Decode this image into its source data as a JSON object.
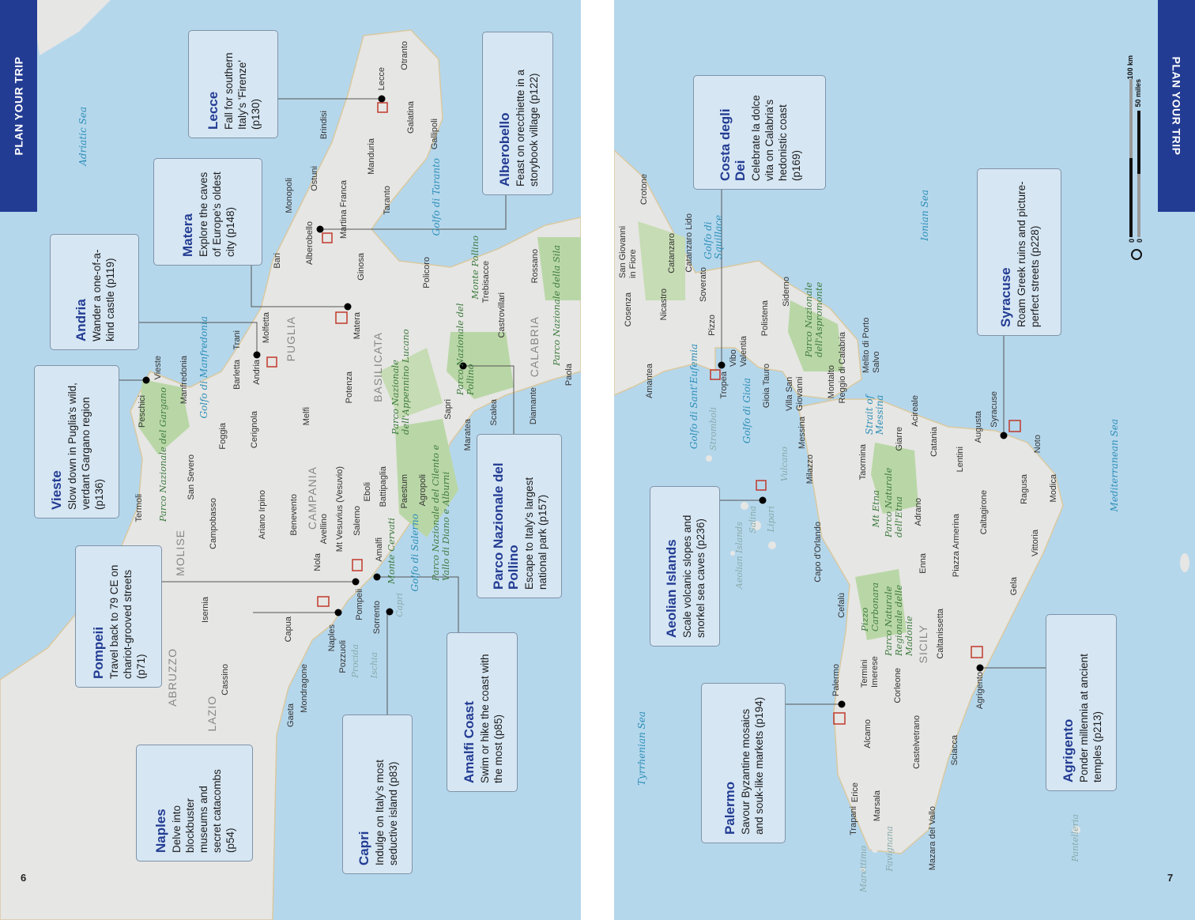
{
  "header": {
    "section_tab": "PLAN YOUR TRIP"
  },
  "pages": {
    "left_number": "6",
    "right_number": "7"
  },
  "scale_bar": {
    "km_label": "100 km",
    "miles_label": "50 miles",
    "zero": "0",
    "north_icon": "north-compass-icon"
  },
  "colors": {
    "sea": "#b5d7ec",
    "land": "#e6e6e4",
    "park": "#b9d7a6",
    "accent": "#233c93",
    "callout_bg": "#d6e6f3",
    "marker": "#c0392b"
  },
  "callouts": [
    {
      "title": "Lecce",
      "text": "Fall for southern Italy's 'Firenze' (p130)"
    },
    {
      "title": "Alberobello",
      "text": "Feast on orecchiette in a storybook village (p122)"
    },
    {
      "title": "Matera",
      "text": "Explore the caves of Europe's oldest city (p148)"
    },
    {
      "title": "Andria",
      "text": "Wander a one-of-a-kind castle (p119)"
    },
    {
      "title": "Vieste",
      "text": "Slow down in Puglia's wild, verdant Gargano region (p136)"
    },
    {
      "title": "Pompeii",
      "text": "Travel back to 79 CE on chariot-grooved streets (p71)"
    },
    {
      "title": "Naples",
      "text": "Delve into blockbuster museums and secret catacombs (p54)"
    },
    {
      "title": "Capri",
      "text": "Indulge on Italy's most seductive island (p83)"
    },
    {
      "title": "Amalfi Coast",
      "text": "Swim or hike the coast with the most (p85)"
    },
    {
      "title": "Parco Nazionale del Pollino",
      "text": "Escape to Italy's largest national park (p157)"
    },
    {
      "title": "Costa degli Dei",
      "text": "Celebrate la dolce vita on Calabria's hedonistic coast (p169)"
    },
    {
      "title": "Syracuse",
      "text": "Roam Greek ruins and picture-perfect streets (p228)"
    },
    {
      "title": "Aeolian Islands",
      "text": "Scale volcanic slopes and snorkel sea caves (p236)"
    },
    {
      "title": "Palermo",
      "text": "Savour Byzantine mosaics and souk-like markets (p194)"
    },
    {
      "title": "Agrigento",
      "text": "Ponder millennia at ancient temples (p213)"
    }
  ],
  "places": [
    "Otranto",
    "Lecce",
    "Galatina",
    "Gallipoli",
    "Brindisi",
    "Manduria",
    "Ostuni",
    "Monopoli",
    "Martina Franca",
    "Taranto",
    "Alberobello",
    "Bari",
    "Ginosa",
    "Policoro",
    "Molfetta",
    "Trani",
    "Matera",
    "Barletta",
    "Andria",
    "PUGLIA",
    "Rossano",
    "Trebisacce",
    "Castrovillari",
    "CALABRIA",
    "Paola",
    "Diamante",
    "Scalea",
    "Sapri",
    "Maratea",
    "Potenza",
    "BASILICATA",
    "Melfi",
    "Cerignola",
    "Foggia",
    "Manfredonia",
    "Vieste",
    "Peschici",
    "San Severo",
    "Termoli",
    "Campobasso",
    "Benevento",
    "Ariano Irpino",
    "CAMPANIA",
    "MOLISE",
    "Eboli",
    "Battipaglia",
    "Paestum",
    "Agropoli",
    "Avellino",
    "Salerno",
    "Nola",
    "Amalfi",
    "Pompeii",
    "Sorrento",
    "Capri",
    "Naples",
    "Pozzuoli",
    "Procida",
    "Ischia",
    "Capua",
    "Isernia",
    "ABRUZZO",
    "Cassino",
    "LAZIO",
    "Mondragone",
    "Gaeta",
    "Mt Vesuvius (Vesuvio)",
    "Adriatic Sea",
    "Golfo di Manfredonia",
    "Golfo di Taranto",
    "Golfo di Salerno",
    "Parco Nazionale del Gargano",
    "Parco Nazionale dell'Appennino Lucano",
    "Parco Nazionale del Pollino",
    "Parco Nazionale del Cilento e Vallo di Diano e Alburni",
    "Monte Cervati",
    "Monte Pollino",
    "Parco Nazionale della Sila",
    "Crotone",
    "San Giovanni in Fiore",
    "Catanzaro",
    "Catanzaro Lido",
    "Golfo di Squillace",
    "Cosenza",
    "Nicastro",
    "Soverato",
    "Pizzo",
    "Vibo Valentia",
    "Polistena",
    "Siderno",
    "Amantea",
    "Tropea",
    "Golfo di Sant'Eufemia",
    "Golfo di Gioia",
    "Gioia Tauro",
    "Villa San Giovanni",
    "Montalto",
    "Reggio di Calabria",
    "Melito di Porto Salvo",
    "Parco Nazionale dell'Aspromonte",
    "Ionian Sea",
    "Strait of Messina",
    "Messina",
    "Stromboli",
    "Aeolian Islands",
    "Salina",
    "Lipari",
    "Vulcano",
    "Milazzo",
    "Capo d'Orlando",
    "Taormina",
    "Giarre",
    "Acireale",
    "Catania",
    "Parco Naturale dell'Etna",
    "Mt Etna",
    "Adrano",
    "Lentini",
    "Augusta",
    "Syracuse",
    "Noto",
    "Modica",
    "Ragusa",
    "Caltagirone",
    "Piazza Armerina",
    "Vittoria",
    "Gela",
    "Enna",
    "Cefalù",
    "Parco Naturale Regionale delle Madonie",
    "Pizzo Carbonara",
    "SICILY",
    "Caltanissetta",
    "Termini Imerese",
    "Corleone",
    "Agrigento",
    "Palermo",
    "Alcamo",
    "Castelvetrano",
    "Sciacca",
    "Mazara del Vallo",
    "Marsala",
    "Trapani",
    "Erice",
    "Favignana",
    "Marettimo",
    "Pantelleria",
    "Tyrrhenian Sea",
    "Mediterranean Sea"
  ]
}
